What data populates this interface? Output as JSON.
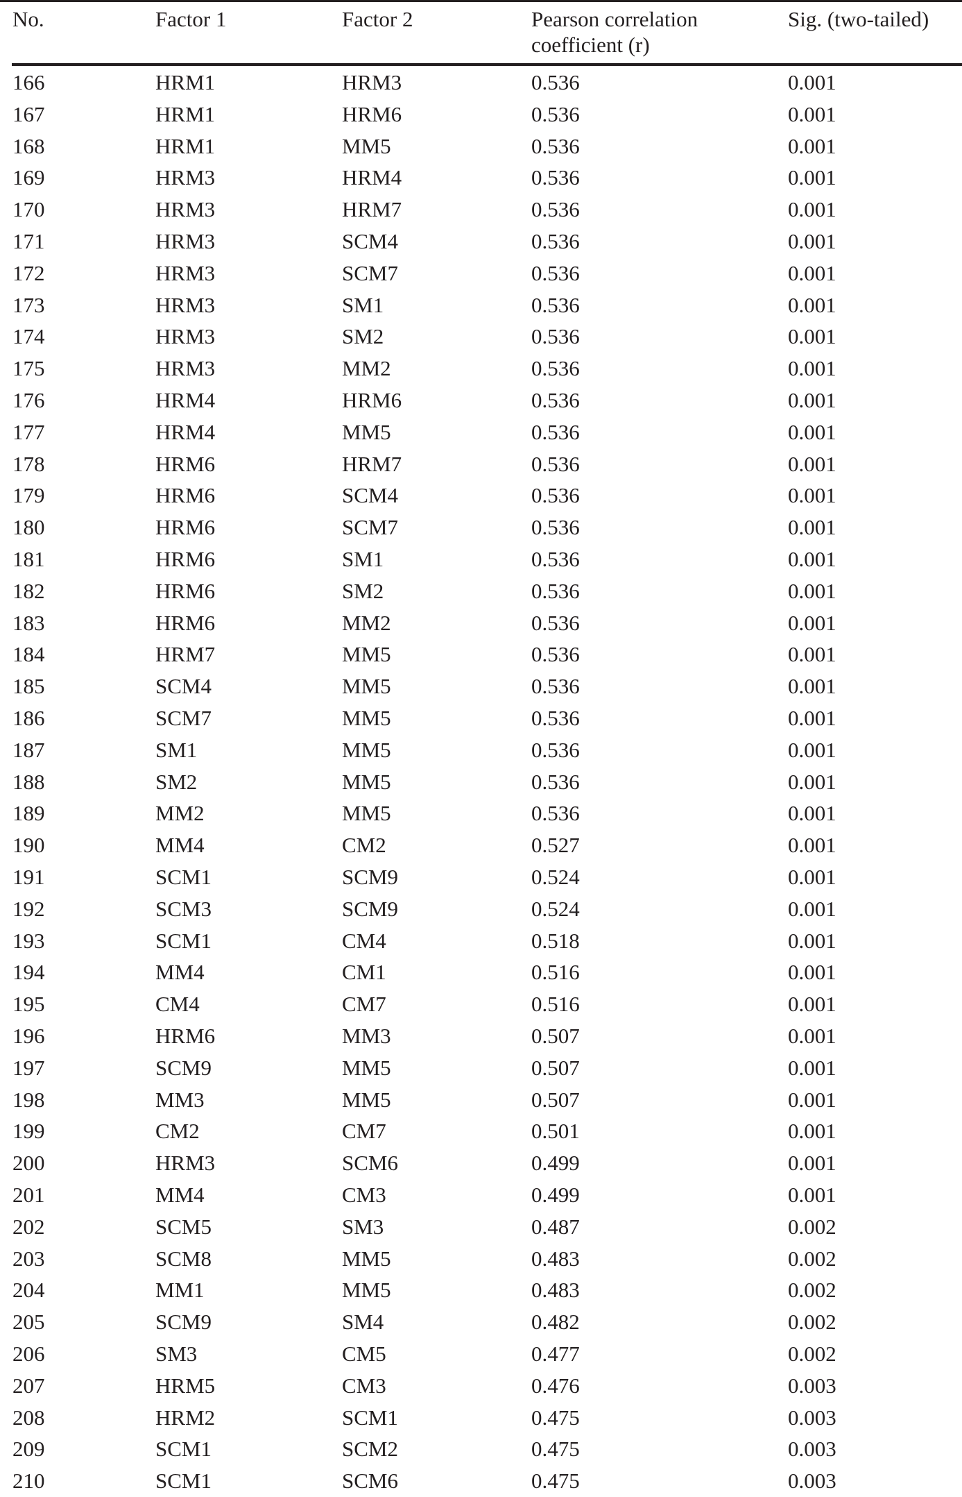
{
  "table": {
    "headers": [
      "No.",
      "Factor 1",
      "Factor 2",
      "Pearson correlation",
      "coefficient (r)",
      "Sig. (two-tailed)"
    ],
    "rows": [
      [
        "166",
        "HRM1",
        "HRM3",
        "0.536",
        "0.001"
      ],
      [
        "167",
        "HRM1",
        "HRM6",
        "0.536",
        "0.001"
      ],
      [
        "168",
        "HRM1",
        "MM5",
        "0.536",
        "0.001"
      ],
      [
        "169",
        "HRM3",
        "HRM4",
        "0.536",
        "0.001"
      ],
      [
        "170",
        "HRM3",
        "HRM7",
        "0.536",
        "0.001"
      ],
      [
        "171",
        "HRM3",
        "SCM4",
        "0.536",
        "0.001"
      ],
      [
        "172",
        "HRM3",
        "SCM7",
        "0.536",
        "0.001"
      ],
      [
        "173",
        "HRM3",
        "SM1",
        "0.536",
        "0.001"
      ],
      [
        "174",
        "HRM3",
        "SM2",
        "0.536",
        "0.001"
      ],
      [
        "175",
        "HRM3",
        "MM2",
        "0.536",
        "0.001"
      ],
      [
        "176",
        "HRM4",
        "HRM6",
        "0.536",
        "0.001"
      ],
      [
        "177",
        "HRM4",
        "MM5",
        "0.536",
        "0.001"
      ],
      [
        "178",
        "HRM6",
        "HRM7",
        "0.536",
        "0.001"
      ],
      [
        "179",
        "HRM6",
        "SCM4",
        "0.536",
        "0.001"
      ],
      [
        "180",
        "HRM6",
        "SCM7",
        "0.536",
        "0.001"
      ],
      [
        "181",
        "HRM6",
        "SM1",
        "0.536",
        "0.001"
      ],
      [
        "182",
        "HRM6",
        "SM2",
        "0.536",
        "0.001"
      ],
      [
        "183",
        "HRM6",
        "MM2",
        "0.536",
        "0.001"
      ],
      [
        "184",
        "HRM7",
        "MM5",
        "0.536",
        "0.001"
      ],
      [
        "185",
        "SCM4",
        "MM5",
        "0.536",
        "0.001"
      ],
      [
        "186",
        "SCM7",
        "MM5",
        "0.536",
        "0.001"
      ],
      [
        "187",
        "SM1",
        "MM5",
        "0.536",
        "0.001"
      ],
      [
        "188",
        "SM2",
        "MM5",
        "0.536",
        "0.001"
      ],
      [
        "189",
        "MM2",
        "MM5",
        "0.536",
        "0.001"
      ],
      [
        "190",
        "MM4",
        "CM2",
        "0.527",
        "0.001"
      ],
      [
        "191",
        "SCM1",
        "SCM9",
        "0.524",
        "0.001"
      ],
      [
        "192",
        "SCM3",
        "SCM9",
        "0.524",
        "0.001"
      ],
      [
        "193",
        "SCM1",
        "CM4",
        "0.518",
        "0.001"
      ],
      [
        "194",
        "MM4",
        "CM1",
        "0.516",
        "0.001"
      ],
      [
        "195",
        "CM4",
        "CM7",
        "0.516",
        "0.001"
      ],
      [
        "196",
        "HRM6",
        "MM3",
        "0.507",
        "0.001"
      ],
      [
        "197",
        "SCM9",
        "MM5",
        "0.507",
        "0.001"
      ],
      [
        "198",
        "MM3",
        "MM5",
        "0.507",
        "0.001"
      ],
      [
        "199",
        "CM2",
        "CM7",
        "0.501",
        "0.001"
      ],
      [
        "200",
        "HRM3",
        "SCM6",
        "0.499",
        "0.001"
      ],
      [
        "201",
        "MM4",
        "CM3",
        "0.499",
        "0.001"
      ],
      [
        "202",
        "SCM5",
        "SM3",
        "0.487",
        "0.002"
      ],
      [
        "203",
        "SCM8",
        "MM5",
        "0.483",
        "0.002"
      ],
      [
        "204",
        "MM1",
        "MM5",
        "0.483",
        "0.002"
      ],
      [
        "205",
        "SCM9",
        "SM4",
        "0.482",
        "0.002"
      ],
      [
        "206",
        "SM3",
        "CM5",
        "0.477",
        "0.002"
      ],
      [
        "207",
        "HRM5",
        "CM3",
        "0.476",
        "0.003"
      ],
      [
        "208",
        "HRM2",
        "SCM1",
        "0.475",
        "0.003"
      ],
      [
        "209",
        "SCM1",
        "SCM2",
        "0.475",
        "0.003"
      ],
      [
        "210",
        "SCM1",
        "SCM6",
        "0.475",
        "0.003"
      ]
    ]
  }
}
